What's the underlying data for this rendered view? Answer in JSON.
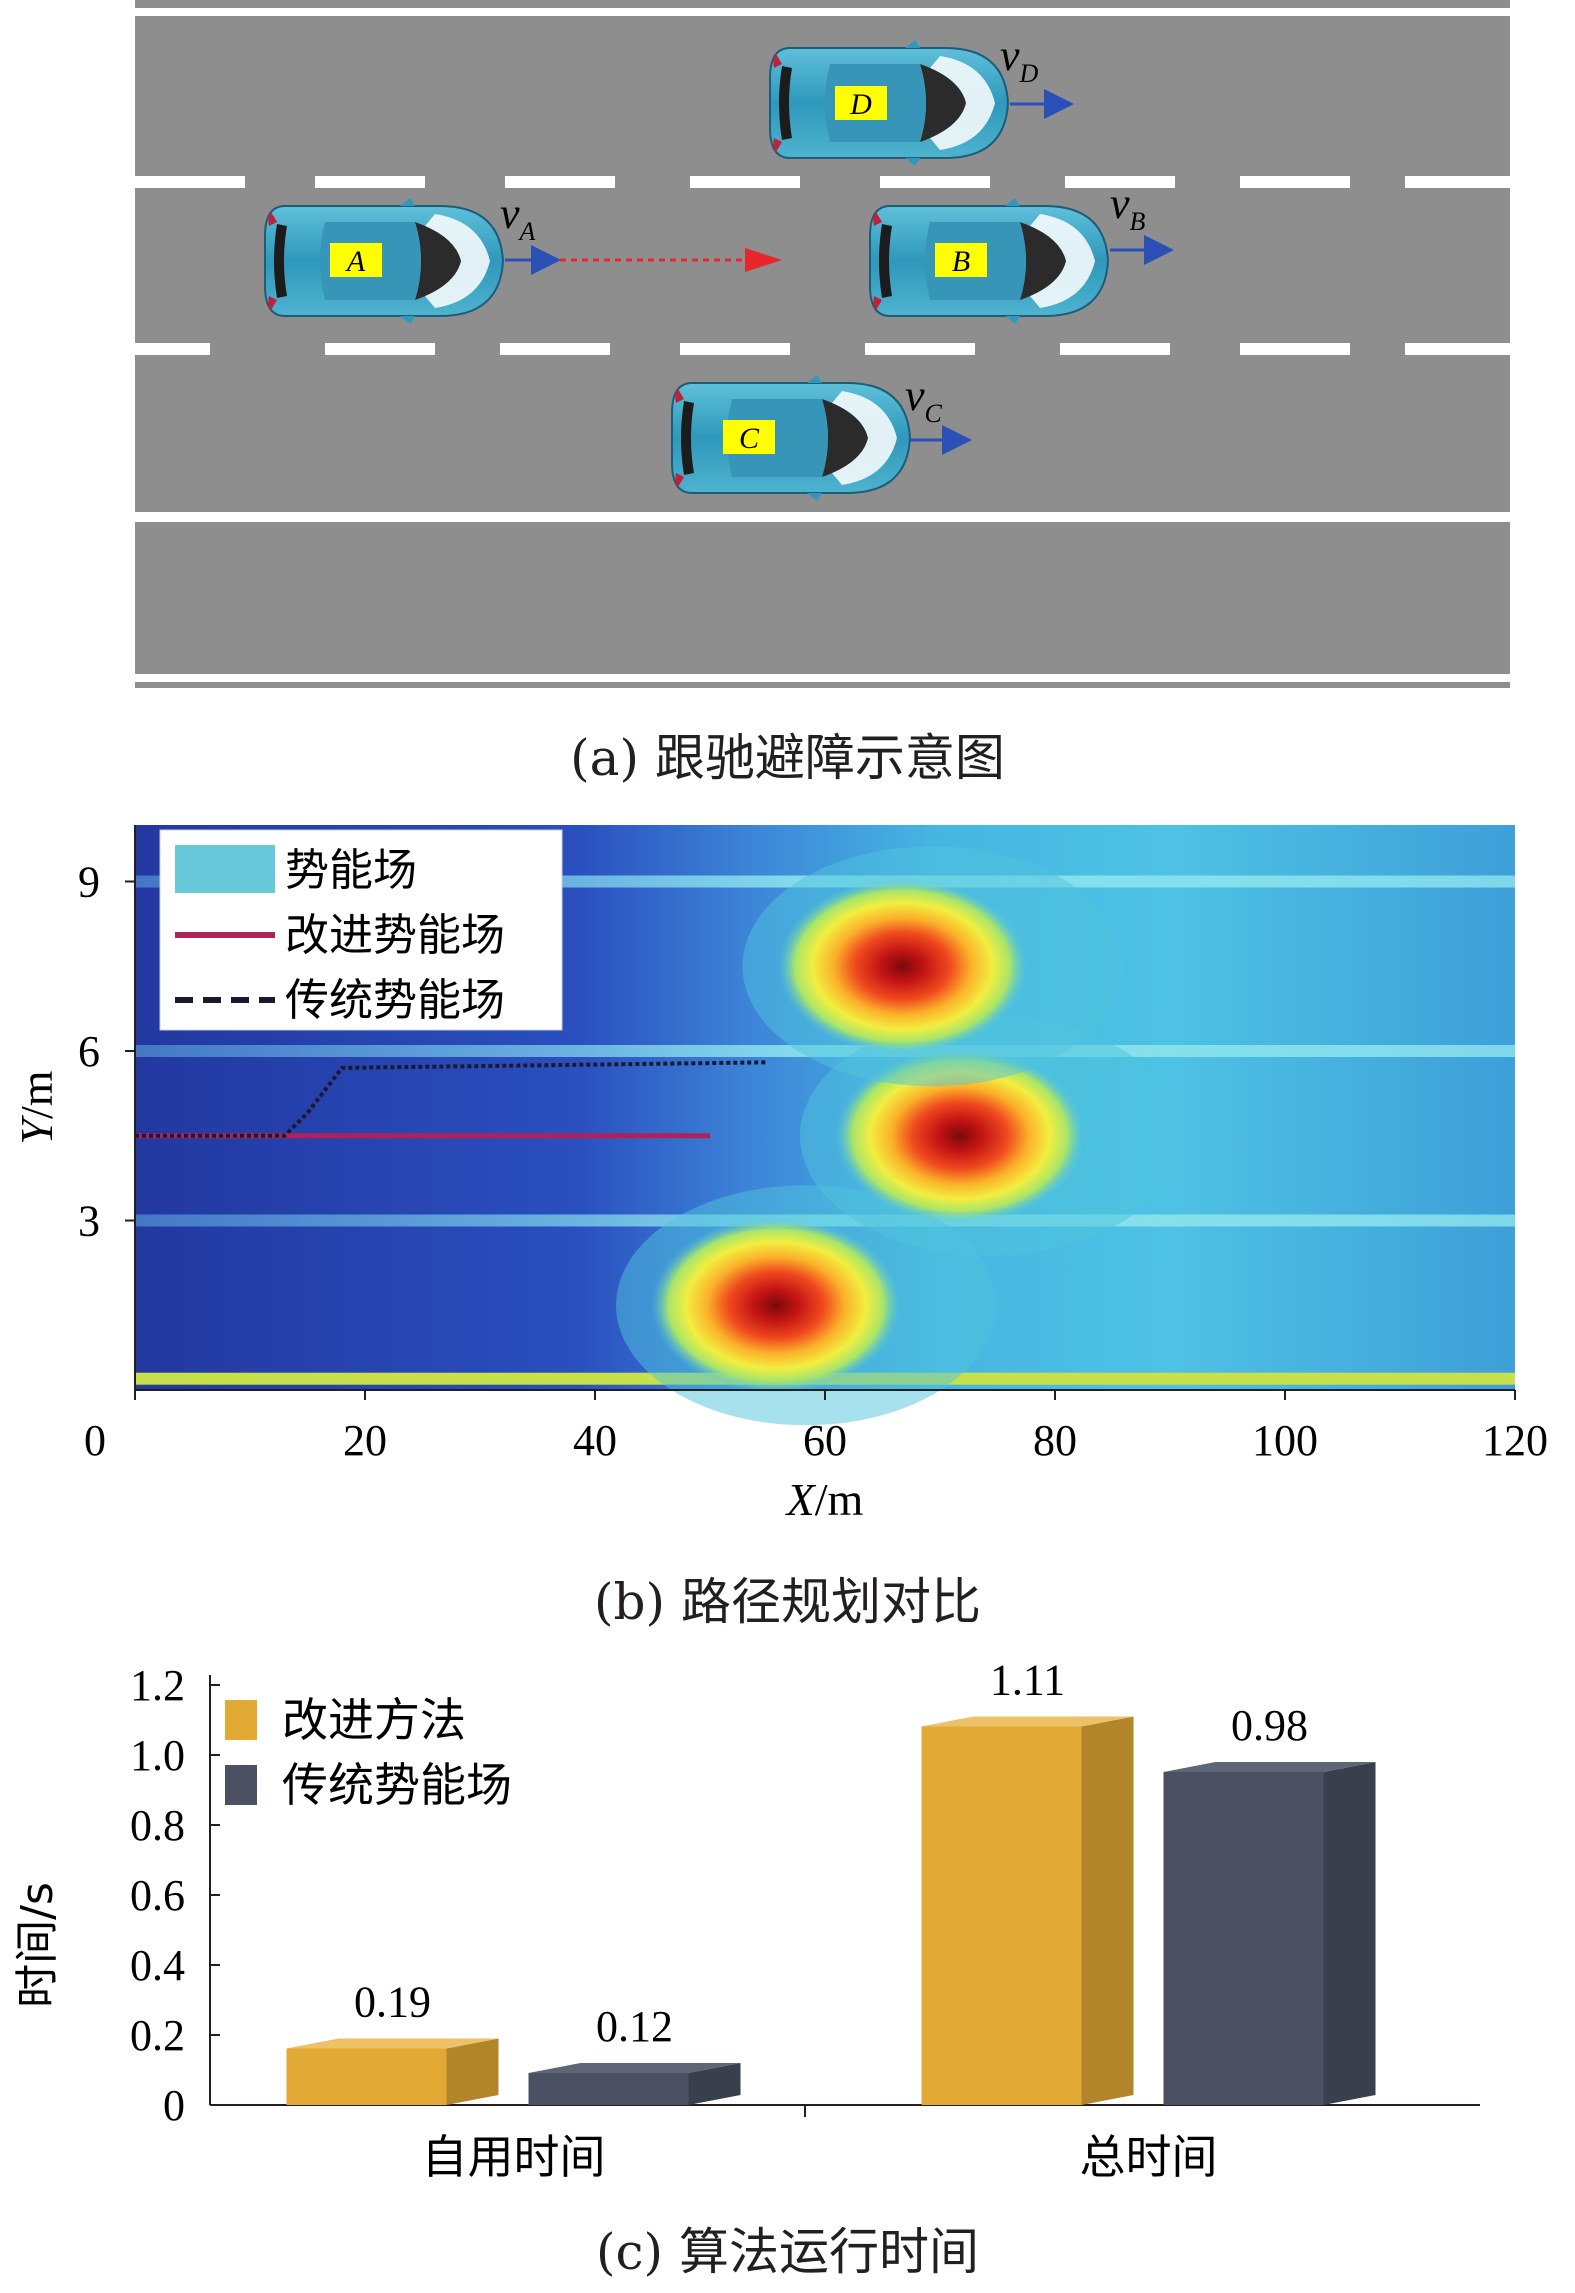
{
  "panel_a": {
    "caption": "(a) 跟驰避障示意图",
    "cars": [
      {
        "label": "A",
        "speed_var": "v",
        "speed_sub": "A"
      },
      {
        "label": "B",
        "speed_var": "v",
        "speed_sub": "B"
      },
      {
        "label": "C",
        "speed_var": "v",
        "speed_sub": "C"
      },
      {
        "label": "D",
        "speed_var": "v",
        "speed_sub": "D"
      }
    ],
    "colors": {
      "road": "#8e8e8e",
      "lane_marking": "#ffffff",
      "car_body": "#3aa0c2",
      "plate": "#ffff00",
      "arrow": "#2b50b8",
      "path_arrow": "#e8262a"
    }
  },
  "panel_b": {
    "caption": "(b) 路径规划对比",
    "legend": [
      "势能场",
      "改进势能场",
      "传统势能场"
    ],
    "colors": {
      "field_low": "#1f3fae",
      "field_mid": "#3fc3d8",
      "field_peak": "#b01010",
      "improved": "#b0215a",
      "traditional": "#1a1a2e"
    }
  },
  "panel_c": {
    "caption": "(c) 算法运行时间",
    "colors": {
      "improved": "#e2a935",
      "traditional": "#4b5162"
    }
  },
  "chart_data": [
    {
      "type": "heatmap",
      "xlabel_var": "X",
      "xlabel_unit": "/m",
      "ylabel_var": "Y",
      "ylabel_unit": "/m",
      "xlim": [
        0,
        120
      ],
      "ylim": [
        0,
        10
      ],
      "xticks": [
        0,
        20,
        40,
        60,
        80,
        100,
        120
      ],
      "yticks": [
        3,
        6,
        9
      ],
      "lane_boundaries_y": [
        0.2,
        3.0,
        6.0,
        9.0
      ],
      "obstacles": [
        {
          "x": 54,
          "y": 1.5
        },
        {
          "x": 70,
          "y": 4.5
        },
        {
          "x": 65,
          "y": 7.5
        }
      ],
      "series": [
        {
          "name": "改进势能场",
          "points": [
            [
              0,
              4.5
            ],
            [
              50,
              4.5
            ]
          ]
        },
        {
          "name": "传统势能场",
          "points": [
            [
              0,
              4.5
            ],
            [
              13,
              4.5
            ],
            [
              15,
              4.9
            ],
            [
              18,
              5.7
            ],
            [
              55,
              5.8
            ]
          ]
        }
      ]
    },
    {
      "type": "bar",
      "ylabel": "时间/s",
      "ylim": [
        0,
        1.2
      ],
      "yticks": [
        "0",
        "0.2",
        "0.4",
        "0.6",
        "0.8",
        "1.0",
        "1.2"
      ],
      "categories": [
        "自用时间",
        "总时间"
      ],
      "series": [
        {
          "name": "改进方法",
          "values": [
            0.19,
            1.11
          ],
          "labels": [
            "0.19",
            "1.11"
          ]
        },
        {
          "name": "传统势能场",
          "values": [
            0.12,
            0.98
          ],
          "labels": [
            "0.12",
            "0.98"
          ]
        }
      ]
    }
  ]
}
